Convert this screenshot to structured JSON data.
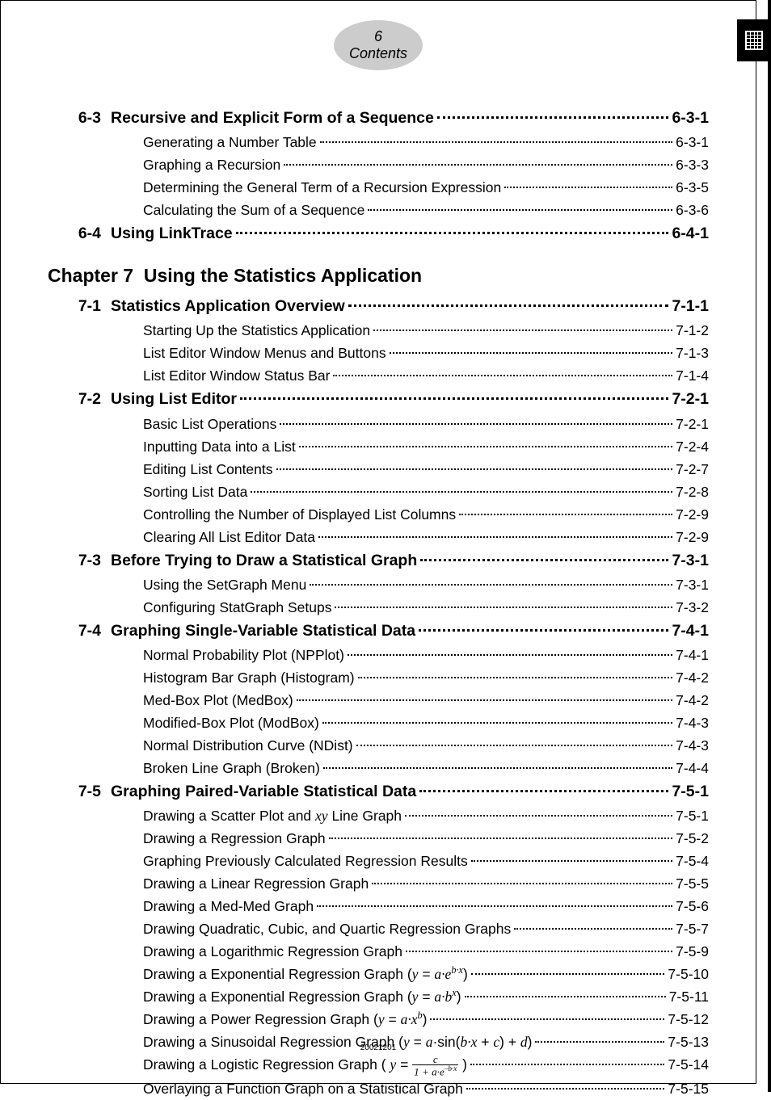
{
  "header": {
    "page_number": "6",
    "page_label": "Contents"
  },
  "colors": {
    "tab_bg": "#cccccc",
    "text": "#000000",
    "page_bg": "#ffffff"
  },
  "fonts": {
    "body": "Arial",
    "math": "Times New Roman",
    "section_size_pt": 14.5,
    "sub_size_pt": 13,
    "chapter_size_pt": 17
  },
  "footer_code": "20021201",
  "toc": [
    {
      "type": "section",
      "num": "6-3",
      "title": "Recursive and Explicit Form of a Sequence",
      "page": "6-3-1"
    },
    {
      "type": "sub",
      "title": "Generating a Number Table",
      "page": "6-3-1"
    },
    {
      "type": "sub",
      "title": "Graphing a Recursion",
      "page": "6-3-3"
    },
    {
      "type": "sub",
      "title": "Determining the General Term of a Recursion Expression",
      "page": "6-3-5"
    },
    {
      "type": "sub",
      "title": "Calculating the Sum of a Sequence",
      "page": "6-3-6"
    },
    {
      "type": "section",
      "num": "6-4",
      "title": "Using LinkTrace",
      "page": "6-4-1"
    },
    {
      "type": "chapter",
      "num": "Chapter  7",
      "title": "Using the Statistics Application"
    },
    {
      "type": "section",
      "num": "7-1",
      "title": "Statistics Application Overview",
      "page": "7-1-1"
    },
    {
      "type": "sub",
      "title": "Starting Up the Statistics Application",
      "page": "7-1-2"
    },
    {
      "type": "sub",
      "title": "List Editor Window Menus and Buttons",
      "page": "7-1-3"
    },
    {
      "type": "sub",
      "title": "List Editor Window Status Bar",
      "page": "7-1-4"
    },
    {
      "type": "section",
      "num": "7-2",
      "title": "Using List Editor",
      "page": "7-2-1"
    },
    {
      "type": "sub",
      "title": "Basic List Operations",
      "page": "7-2-1"
    },
    {
      "type": "sub",
      "title": "Inputting Data into a List",
      "page": "7-2-4"
    },
    {
      "type": "sub",
      "title": "Editing List Contents",
      "page": "7-2-7"
    },
    {
      "type": "sub",
      "title": "Sorting List Data",
      "page": "7-2-8"
    },
    {
      "type": "sub",
      "title": "Controlling the Number of Displayed List Columns",
      "page": "7-2-9"
    },
    {
      "type": "sub",
      "title": "Clearing All List Editor Data",
      "page": "7-2-9"
    },
    {
      "type": "section",
      "num": "7-3",
      "title": "Before Trying to Draw a Statistical Graph",
      "page": "7-3-1"
    },
    {
      "type": "sub",
      "title": "Using the SetGraph Menu",
      "page": "7-3-1"
    },
    {
      "type": "sub",
      "title": "Configuring StatGraph Setups",
      "page": "7-3-2"
    },
    {
      "type": "section",
      "num": "7-4",
      "title": "Graphing Single-Variable Statistical Data",
      "page": "7-4-1"
    },
    {
      "type": "sub",
      "title": "Normal Probability Plot (NPPlot)",
      "page": "7-4-1"
    },
    {
      "type": "sub",
      "title": "Histogram Bar Graph (Histogram)",
      "page": "7-4-2"
    },
    {
      "type": "sub",
      "title": "Med-Box Plot (MedBox)",
      "page": "7-4-2"
    },
    {
      "type": "sub",
      "title": "Modified-Box Plot (ModBox)",
      "page": "7-4-3"
    },
    {
      "type": "sub",
      "title": "Normal Distribution Curve (NDist)",
      "page": "7-4-3"
    },
    {
      "type": "sub",
      "title": "Broken Line Graph (Broken)",
      "page": "7-4-4"
    },
    {
      "type": "section",
      "num": "7-5",
      "title": "Graphing Paired-Variable Statistical Data",
      "page": "7-5-1"
    },
    {
      "type": "sub",
      "title_html": "Drawing a Scatter Plot and <span class='ital'>xy</span> Line Graph",
      "page": "7-5-1"
    },
    {
      "type": "sub",
      "title": "Drawing a Regression Graph",
      "page": "7-5-2"
    },
    {
      "type": "sub",
      "title": "Graphing Previously Calculated Regression Results",
      "page": "7-5-4"
    },
    {
      "type": "sub",
      "title": "Drawing a Linear Regression Graph",
      "page": "7-5-5"
    },
    {
      "type": "sub",
      "title": "Drawing a Med-Med Graph",
      "page": "7-5-6"
    },
    {
      "type": "sub",
      "title": "Drawing Quadratic, Cubic, and Quartic Regression Graphs",
      "page": "7-5-7"
    },
    {
      "type": "sub",
      "title": "Drawing a Logarithmic Regression Graph",
      "page": "7-5-9"
    },
    {
      "type": "sub",
      "title_html": "Drawing a Exponential Regression Graph (<span class='ital'>y</span> = <span class='ital'>a·e<sup>b·x</sup></span>)",
      "page": "7-5-10"
    },
    {
      "type": "sub",
      "title_html": "Drawing a Exponential Regression Graph (<span class='ital'>y</span> = <span class='ital'>a·b<sup>x</sup></span>)",
      "page": "7-5-11"
    },
    {
      "type": "sub",
      "title_html": "Drawing a Power Regression Graph (<span class='ital'>y</span> = <span class='ital'>a·x<sup>b</sup></span>)",
      "page": "7-5-12"
    },
    {
      "type": "sub",
      "title_html": "Drawing a Sinusoidal Regression Graph (<span class='ital'>y</span> = <span class='ital'>a</span>·sin(<span class='ital'>b·x</span> + <span class='ital'>c</span>) + <span class='ital'>d</span>)",
      "page": "7-5-13"
    },
    {
      "type": "sub",
      "title_html": "Drawing a Logistic Regression Graph ( <span class='ital'>y</span> = <span class='frac'><span class='n'>c</span><span class='d'>1 + a·e<sup>–b·x</sup></span></span> )",
      "page": "7-5-14"
    },
    {
      "type": "sub",
      "title": "Overlaying a Function Graph on a Statistical Graph",
      "page": "7-5-15"
    }
  ]
}
